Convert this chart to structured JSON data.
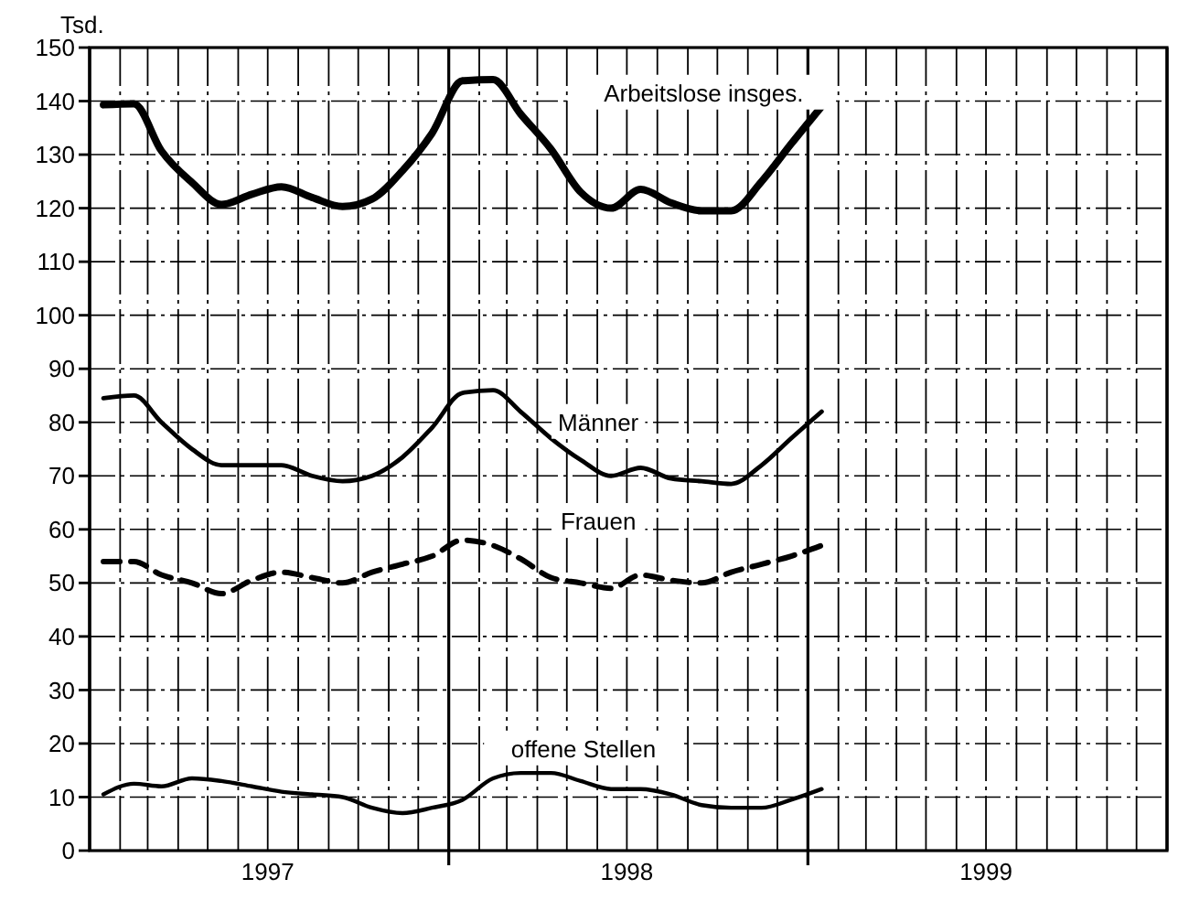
{
  "chart_data": {
    "type": "line",
    "ylabel": "Tsd.",
    "x": [
      "1997-01-15",
      "1997-02-15",
      "1997-03-15",
      "1997-04-15",
      "1997-05-15",
      "1997-06-15",
      "1997-07-15",
      "1997-08-15",
      "1997-09-15",
      "1997-10-15",
      "1997-11-15",
      "1997-12-15",
      "1998-01-15",
      "1998-02-15",
      "1998-03-15",
      "1998-04-15",
      "1998-05-15",
      "1998-06-15",
      "1998-07-15",
      "1998-08-15",
      "1998-09-15",
      "1998-10-15",
      "1998-11-15",
      "1998-12-15",
      "1999-01-15"
    ],
    "series": [
      {
        "name": "Arbeitslose insges.",
        "color": "#000000",
        "line_style": "solid",
        "values": [
          139.3,
          139.5,
          130.7,
          124.8,
          120.7,
          122.6,
          124,
          122,
          120.3,
          121.7,
          127,
          134,
          143.8,
          144,
          137.6,
          131,
          123,
          120,
          123.5,
          121,
          119.5,
          119.5,
          125,
          132,
          139
        ]
      },
      {
        "name": "Männer",
        "color": "#000000",
        "line_style": "solid",
        "values": [
          84.5,
          85,
          80,
          75,
          72,
          72,
          72,
          70,
          69,
          70,
          73.5,
          79,
          85.5,
          86,
          82,
          77,
          73,
          70,
          71.5,
          69.5,
          69,
          68.5,
          72,
          77,
          82
        ]
      },
      {
        "name": "Frauen",
        "color": "#000000",
        "line_style": "dashed",
        "values": [
          54,
          54,
          51.5,
          50,
          48,
          50.5,
          52,
          51,
          50,
          52,
          53.5,
          55,
          58,
          57,
          54.5,
          51,
          50,
          49,
          51.5,
          50.5,
          50,
          52,
          53.5,
          55,
          57
        ]
      },
      {
        "name": "offene Stellen",
        "color": "#000000",
        "line_style": "solid",
        "values": [
          10.5,
          12.5,
          12,
          13.5,
          13,
          12,
          11,
          10.5,
          10,
          8,
          7,
          8,
          9.5,
          13.5,
          14.5,
          14.5,
          13,
          11.5,
          11.5,
          10.5,
          8.5,
          8,
          8,
          9.5,
          11.5
        ]
      }
    ],
    "xlim": [
      "1997-01",
      "2000-01"
    ],
    "xticks": [
      {
        "value": "1997-07",
        "label": "1997"
      },
      {
        "value": "1998-01",
        "label": null
      },
      {
        "value": "1998-07",
        "label": "1998"
      },
      {
        "value": "1999-01",
        "label": null
      },
      {
        "value": "1999-07",
        "label": "1999"
      }
    ],
    "ylim": [
      0,
      150
    ],
    "yticks": [
      0,
      10,
      20,
      30,
      40,
      50,
      60,
      70,
      80,
      90,
      100,
      110,
      120,
      130,
      140,
      150
    ],
    "grid": true,
    "marker": "none"
  }
}
